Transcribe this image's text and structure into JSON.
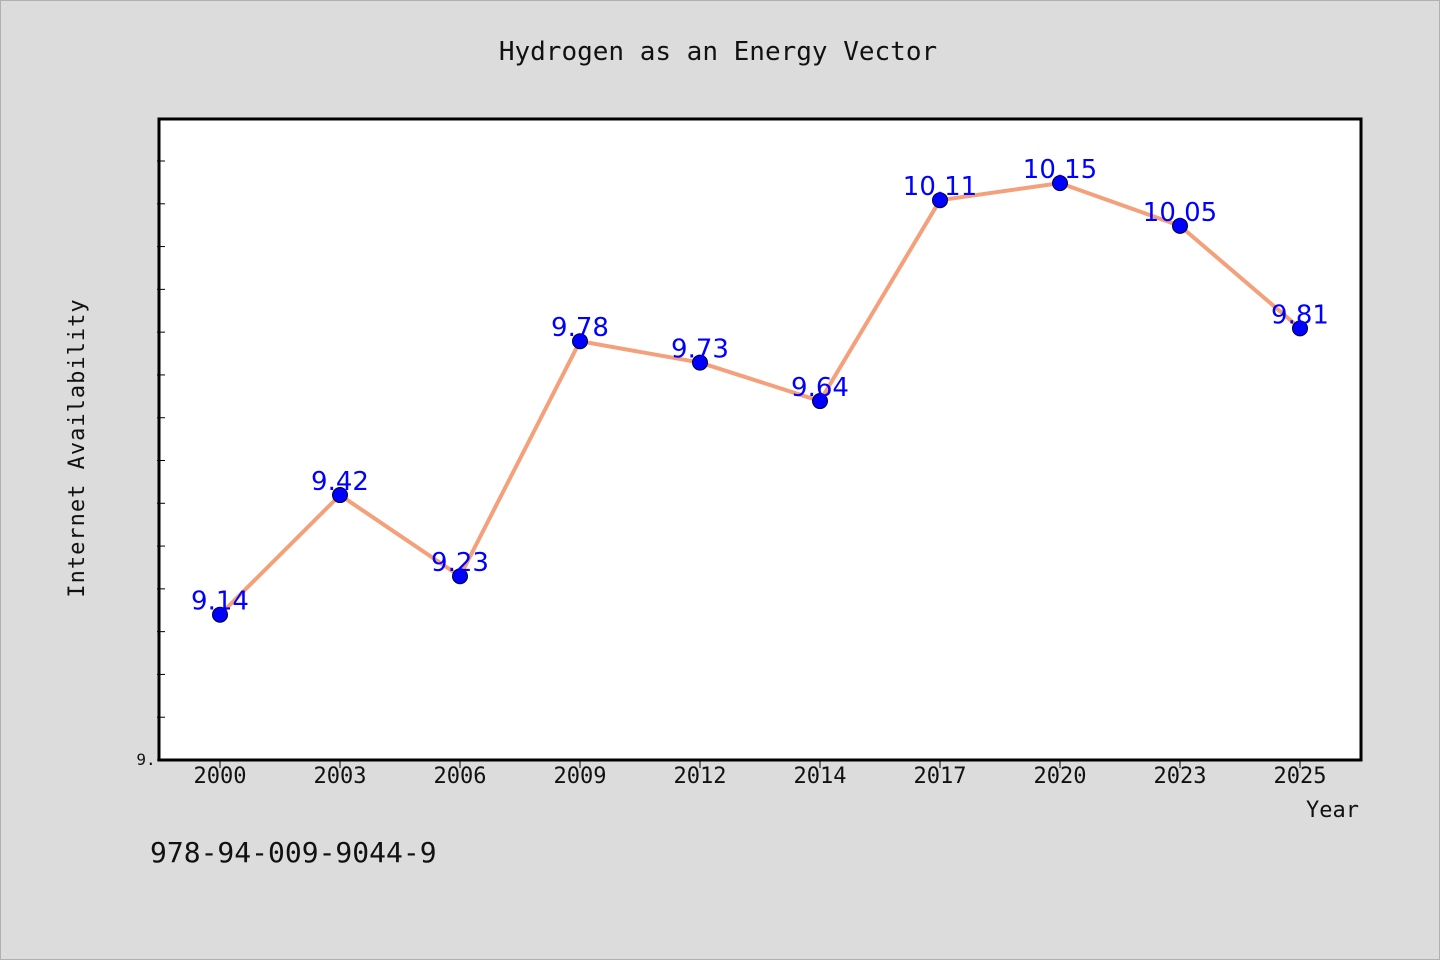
{
  "chart_data": {
    "type": "line",
    "title": "Hydrogen as an Energy Vector",
    "xlabel": "Year",
    "ylabel": "Internet Availability",
    "categories": [
      "2000",
      "2003",
      "2006",
      "2009",
      "2012",
      "2014",
      "2017",
      "2020",
      "2023",
      "2025"
    ],
    "series": [
      {
        "values": [
          9.14,
          9.42,
          9.23,
          9.78,
          9.73,
          9.64,
          10.11,
          10.15,
          10.05,
          9.81
        ],
        "line_color": "#f4a07a",
        "marker_color": "#0000ff"
      }
    ],
    "data_labels": [
      "9.14",
      "9.42",
      "9.23",
      "9.78",
      "9.73",
      "9.64",
      "10.11",
      "10.15",
      "10.05",
      "9.81"
    ],
    "ylim": [
      8.8,
      10.3
    ],
    "ytick_labels": [
      "9."
    ],
    "grid": false,
    "legend": "none"
  },
  "footer": {
    "isbn": "978-94-009-9044-9"
  },
  "colors": {
    "background": "#dcdcdc",
    "plot_background": "#ffffff",
    "axis": "#000000",
    "line": "#f4a07a",
    "marker": "#0000ff",
    "data_label": "#0000ff"
  }
}
